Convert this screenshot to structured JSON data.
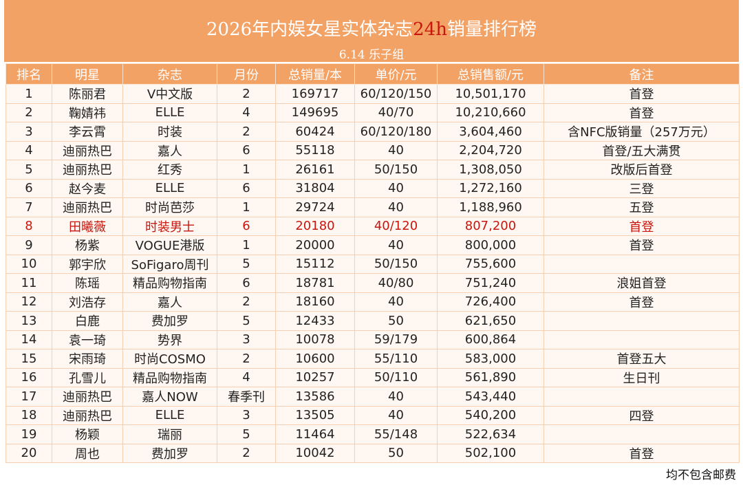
{
  "header": {
    "title": [
      "2026年内娱女星实体杂志",
      "24h",
      "销量排行榜"
    ],
    "subtitle": "6.14 乐子组"
  },
  "table": {
    "columns": [
      "排名",
      "明星",
      "杂志",
      "月份",
      "总销量/本",
      "单价/元",
      "总销售额/元",
      "备注"
    ],
    "rows": [
      [
        "1",
        "陈丽君",
        "V中文版",
        "2",
        "169717",
        "60/120/150",
        "10,501,170",
        "首登"
      ],
      [
        "2",
        "鞠婧祎",
        "ELLE",
        "4",
        "149695",
        "40/70",
        "10,210,660",
        "首登"
      ],
      [
        "3",
        "李云霄",
        "时装",
        "2",
        "60424",
        "60/120/180",
        "3,604,460",
        "含NFC版销量（257万元）"
      ],
      [
        "4",
        "迪丽热巴",
        "嘉人",
        "6",
        "55118",
        "40",
        "2,204,720",
        "首登/五大满贯"
      ],
      [
        "5",
        "迪丽热巴",
        "红秀",
        "1",
        "26161",
        "50/150",
        "1,308,050",
        "改版后首登"
      ],
      [
        "6",
        "赵今麦",
        "ELLE",
        "6",
        "31804",
        "40",
        "1,272,160",
        "三登"
      ],
      [
        "7",
        "迪丽热巴",
        "时尚芭莎",
        "1",
        "29724",
        "40",
        "1,188,960",
        "五登"
      ],
      [
        "8",
        "田曦薇",
        "时装男士",
        "6",
        "20180",
        "40/120",
        "807,200",
        "首登"
      ],
      [
        "9",
        "杨紫",
        "VOGUE港版",
        "1",
        "20000",
        "40",
        "800,000",
        "首登"
      ],
      [
        "10",
        "郭宇欣",
        "SoFigaro周刊",
        "5",
        "15112",
        "50/150",
        "755,600",
        null
      ],
      [
        "11",
        "陈瑶",
        "精品购物指南",
        "6",
        "18781",
        "40/80",
        "751,240",
        "浪姐首登"
      ],
      [
        "12",
        "刘浩存",
        "嘉人",
        "2",
        "18160",
        "40",
        "726,400",
        "首登"
      ],
      [
        "13",
        "白鹿",
        "费加罗",
        "5",
        "12433",
        "50",
        "621,650",
        null
      ],
      [
        "14",
        "袁一琦",
        "势界",
        "3",
        "10078",
        "59/179",
        "600,864",
        null
      ],
      [
        "15",
        "宋雨琦",
        "时尚COSMO",
        "2",
        "10600",
        "55/110",
        "583,000",
        "首登五大"
      ],
      [
        "16",
        "孔雪儿",
        "精品购物指南",
        "4",
        "10257",
        "50/110",
        "561,890",
        "生日刊"
      ],
      [
        "17",
        "迪丽热巴",
        "嘉人NOW",
        "春季刊",
        "13586",
        "40",
        "543,440",
        null
      ],
      [
        "18",
        "迪丽热巴",
        "ELLE",
        "3",
        "13505",
        "40",
        "540,200",
        "四登"
      ],
      [
        "19",
        "杨颖",
        "瑞丽",
        "5",
        "11464",
        "55/148",
        "522,634",
        null
      ],
      [
        "20",
        "周也",
        "费加罗",
        "2",
        "10042",
        "50",
        "502,100",
        "首登"
      ]
    ]
  },
  "footer": "均不包含邮费"
}
